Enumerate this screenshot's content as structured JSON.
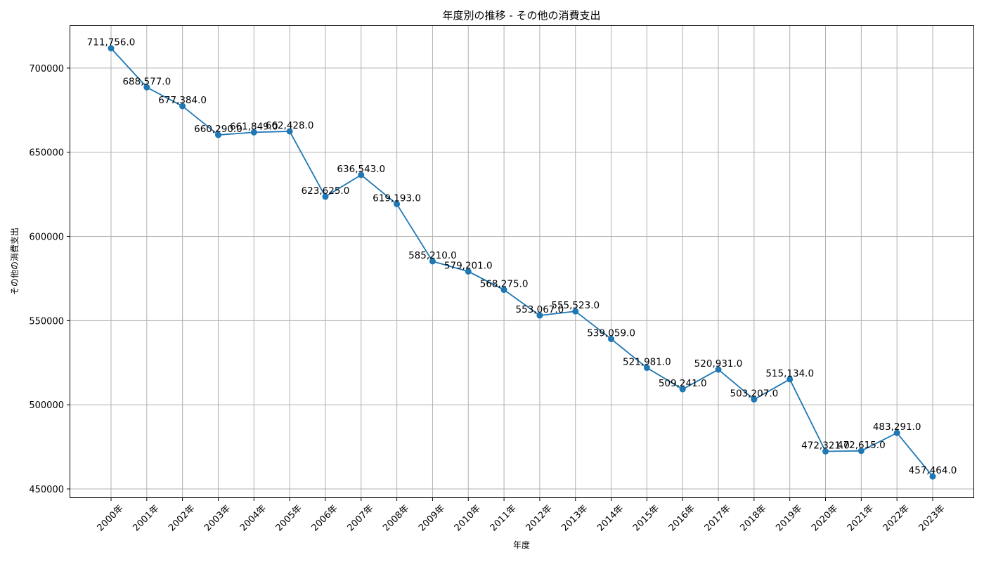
{
  "chart_data": {
    "type": "line",
    "title": "年度別の推移 - その他の消費支出",
    "xlabel": "年度",
    "ylabel": "その他の消費支出",
    "categories": [
      "2000年",
      "2001年",
      "2002年",
      "2003年",
      "2004年",
      "2005年",
      "2006年",
      "2007年",
      "2008年",
      "2009年",
      "2010年",
      "2011年",
      "2012年",
      "2013年",
      "2014年",
      "2015年",
      "2016年",
      "2017年",
      "2018年",
      "2019年",
      "2020年",
      "2021年",
      "2022年",
      "2023年"
    ],
    "values": [
      711756.0,
      688577.0,
      677384.0,
      660290.0,
      661849.0,
      662428.0,
      623625.0,
      636543.0,
      619193.0,
      585210.0,
      579201.0,
      568275.0,
      553067.0,
      555523.0,
      539059.0,
      521981.0,
      509241.0,
      520931.0,
      503207.0,
      515134.0,
      472321.0,
      472615.0,
      483291.0,
      457464.0
    ],
    "data_labels": [
      "711,756.0",
      "688,577.0",
      "677,384.0",
      "660,290.0",
      "661,849.0",
      "662,428.0",
      "623,625.0",
      "636,543.0",
      "619,193.0",
      "585,210.0",
      "579,201.0",
      "568,275.0",
      "553,067.0",
      "555,523.0",
      "539,059.0",
      "521,981.0",
      "509,241.0",
      "520,931.0",
      "503,207.0",
      "515,134.0",
      "472,321.0",
      "472,615.0",
      "483,291.0",
      "457,464.0"
    ],
    "yticks": [
      450000,
      500000,
      550000,
      600000,
      650000,
      700000
    ],
    "ylim": [
      445000,
      725000
    ],
    "grid": true,
    "series_color": "#1f77b4"
  }
}
